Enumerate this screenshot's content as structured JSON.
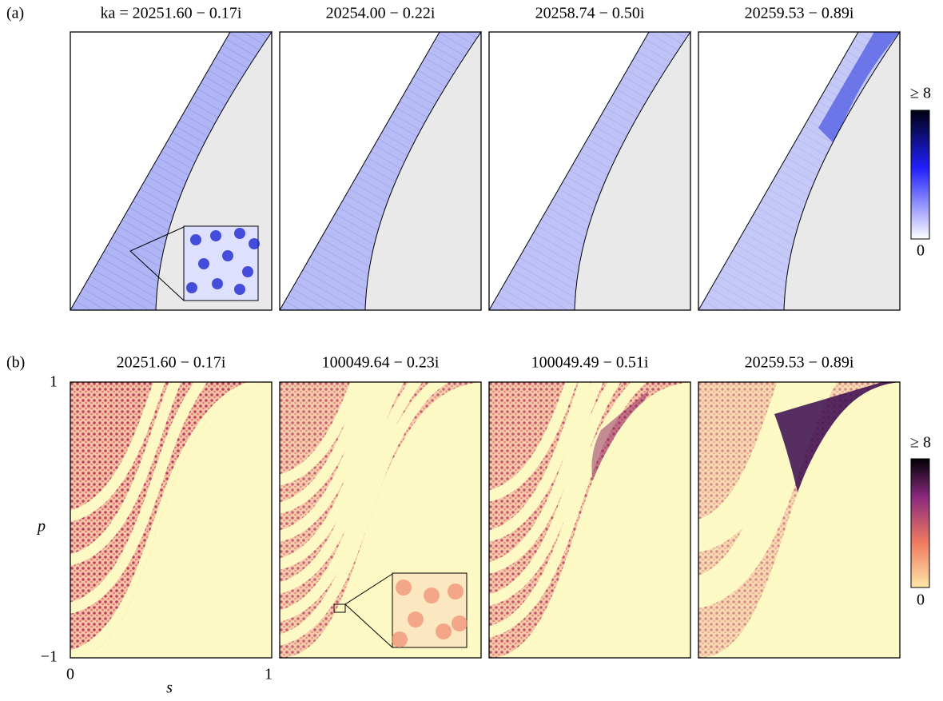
{
  "row_a": {
    "label": "(a)",
    "titles": [
      "ka = 20251.60 − 0.17i",
      "20254.00 − 0.22i",
      "20258.74 − 0.50i",
      "20259.53 − 0.89i"
    ],
    "colorbar": {
      "max_label": "≥ 8",
      "min_label": "0"
    }
  },
  "row_b": {
    "label": "(b)",
    "titles": [
      "20251.60 − 0.17i",
      "100049.64 − 0.23i",
      "100049.49 − 0.51i",
      "20259.53 − 0.89i"
    ],
    "colorbar": {
      "max_label": "≥ 8",
      "min_label": "0"
    },
    "y_axis": {
      "label": "p",
      "ticks": [
        "1",
        "−1"
      ]
    },
    "x_axis": {
      "label": "s",
      "ticks": [
        "0",
        "1"
      ]
    }
  }
}
